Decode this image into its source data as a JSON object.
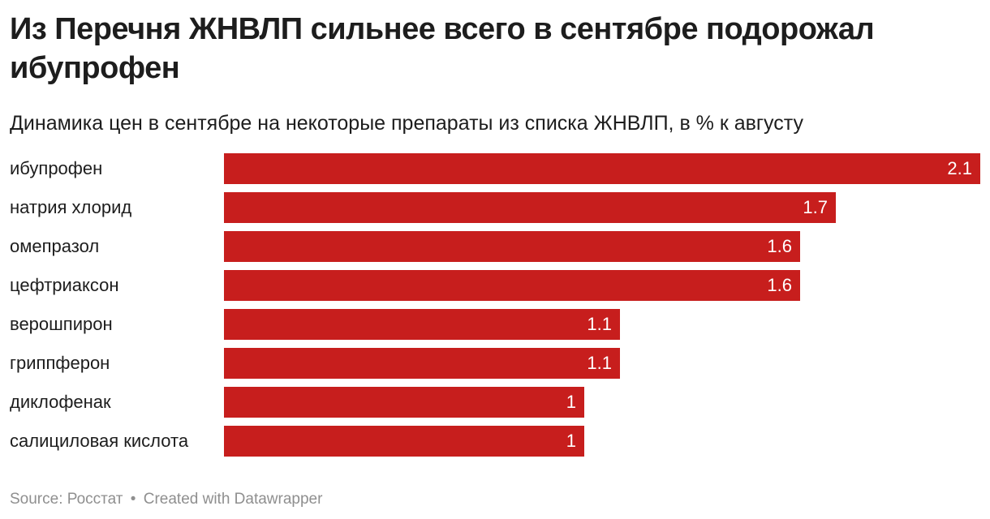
{
  "title": "Из Перечня ЖНВЛП сильнее всего в сентябре подорожал ибупрофен",
  "subtitle": "Динамика цен в сентябре на некоторые препараты из списка ЖНВЛП, в % к августу",
  "footer": {
    "source": "Source: Росстат",
    "separator": "•",
    "credit": "Created with Datawrapper"
  },
  "colors": {
    "bar": "#c71e1d",
    "value_label": "#ffffff",
    "footer": "#8f8f8f"
  },
  "chart_data": {
    "type": "bar",
    "orientation": "horizontal",
    "title": "Из Перечня ЖНВЛП сильнее всего в сентябре подорожал ибупрофен",
    "subtitle": "Динамика цен в сентябре на некоторые препараты из списка ЖНВЛП, в % к августу",
    "categories": [
      "ибупрофен",
      "натрия хлорид",
      "омепразол",
      "цефтриаксон",
      "верошпирон",
      "гриппферон",
      "диклофенак",
      "салициловая кислота"
    ],
    "values": [
      2.1,
      1.7,
      1.6,
      1.6,
      1.1,
      1.1,
      1,
      1
    ],
    "value_labels": [
      "2.1",
      "1.7",
      "1.6",
      "1.6",
      "1.1",
      "1.1",
      "1",
      "1"
    ],
    "xlim": [
      0,
      2.1
    ],
    "grid": false,
    "legend": "none"
  }
}
